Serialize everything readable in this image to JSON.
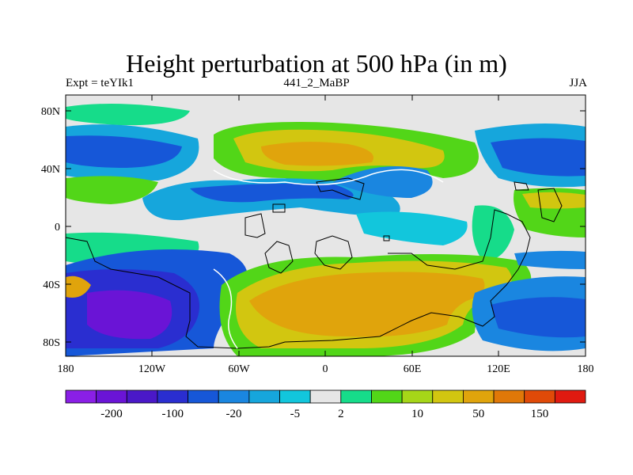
{
  "title": "Height perturbation at 500 hPa (in m)",
  "subtitle_left": "Expt = teYIk1",
  "subtitle_center": "441_2_MaBP",
  "subtitle_right": "JJA",
  "lat_ticks": [
    "80N",
    "40N",
    "0",
    "40S",
    "80S"
  ],
  "lon_ticks": [
    "180",
    "120W",
    "60W",
    "0",
    "60E",
    "120E",
    "180"
  ],
  "colorbar": {
    "colors": [
      "#8a1fe6",
      "#6a14d6",
      "#4a18c8",
      "#2a2ed0",
      "#1657d8",
      "#1a86e0",
      "#16a6dc",
      "#12c6dc",
      "#e6e6e6",
      "#16dc8a",
      "#52d618",
      "#a6d618",
      "#d2c610",
      "#e0a40c",
      "#e07808",
      "#e04a08",
      "#e01a10"
    ],
    "labels": [
      "-200",
      "-100",
      "-20",
      "-5",
      "2",
      "10",
      "50",
      "150"
    ]
  }
}
